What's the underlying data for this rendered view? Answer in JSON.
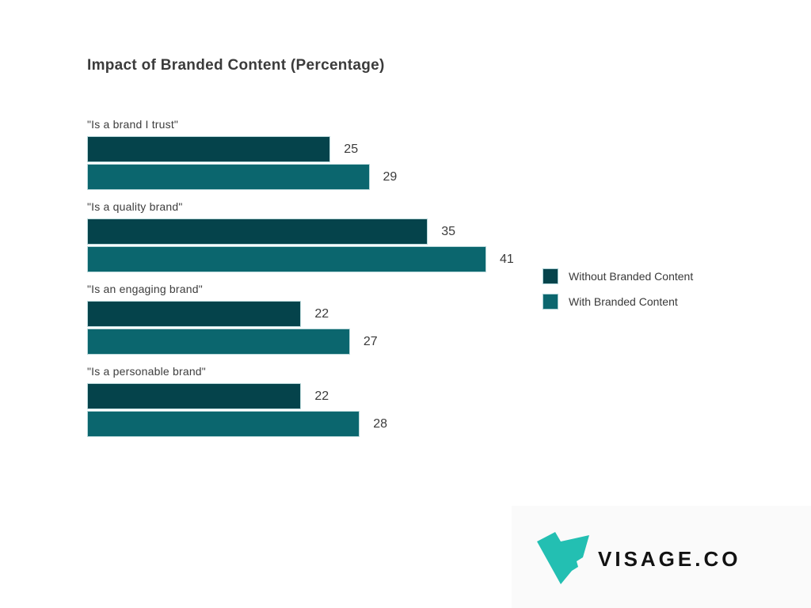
{
  "title": "Impact of Branded Content (Percentage)",
  "chart_data": {
    "type": "bar",
    "orientation": "horizontal",
    "title": "Impact of Branded Content (Percentage)",
    "categories": [
      "\"Is a brand I trust\"",
      "\"Is a quality brand\"",
      "\"Is an engaging brand\"",
      "\"Is a personable brand\""
    ],
    "series": [
      {
        "name": "Without Branded Content",
        "color": "#05434b",
        "values": [
          25,
          35,
          22,
          22
        ]
      },
      {
        "name": "With Branded Content",
        "color": "#0b666e",
        "values": [
          29,
          41,
          27,
          28
        ]
      }
    ],
    "value_labels_shown": true,
    "axes_shown": false,
    "grid": false,
    "xlim": [
      0,
      41
    ],
    "legend_position": "right"
  },
  "legend": {
    "items": [
      {
        "label": "Without Branded Content",
        "color": "#05434b"
      },
      {
        "label": "With Branded Content",
        "color": "#0b666e"
      }
    ]
  },
  "logo": {
    "text": "VISAGE.CO",
    "mark": "teal-shard-logo",
    "mark_color": "#23bfb2",
    "panel_background": "#fafafa"
  }
}
